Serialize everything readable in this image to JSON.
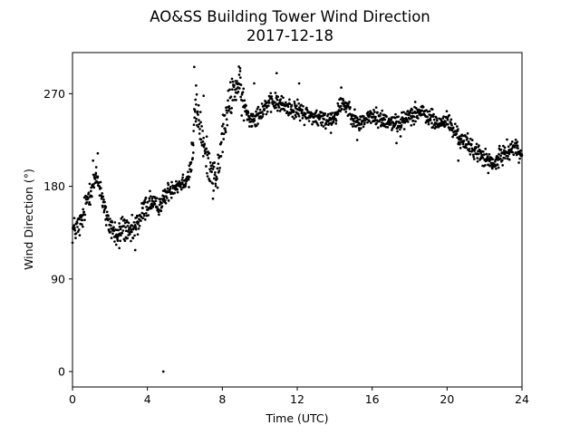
{
  "chart_data": {
    "type": "scatter",
    "title": "AO&SS Building Tower Wind Direction",
    "subtitle": "2017-12-18",
    "xlabel": "Time (UTC)",
    "ylabel": "Wind Direction (°)",
    "xlim": [
      0,
      24
    ],
    "ylim": [
      -15,
      310
    ],
    "xticks": [
      0,
      4,
      8,
      12,
      16,
      20,
      24
    ],
    "xtick_labels": [
      "0",
      "4",
      "8",
      "12",
      "16",
      "20",
      "24"
    ],
    "yticks": [
      0,
      90,
      180,
      270
    ],
    "ytick_labels": [
      "0",
      "90",
      "180",
      "270"
    ],
    "grid": false,
    "legend": "none",
    "marker_color": "#000000",
    "trend": [
      [
        0.0,
        137
      ],
      [
        0.25,
        140
      ],
      [
        0.5,
        145
      ],
      [
        0.7,
        162
      ],
      [
        0.9,
        175
      ],
      [
        1.1,
        182
      ],
      [
        1.3,
        188
      ],
      [
        1.5,
        178
      ],
      [
        1.7,
        160
      ],
      [
        1.85,
        145
      ],
      [
        2.1,
        140
      ],
      [
        2.4,
        130
      ],
      [
        2.7,
        142
      ],
      [
        3.0,
        132
      ],
      [
        3.3,
        138
      ],
      [
        3.6,
        148
      ],
      [
        3.9,
        160
      ],
      [
        4.2,
        165
      ],
      [
        4.5,
        160
      ],
      [
        4.8,
        165
      ],
      [
        5.1,
        175
      ],
      [
        5.4,
        180
      ],
      [
        5.7,
        182
      ],
      [
        6.0,
        186
      ],
      [
        6.2,
        190
      ],
      [
        6.4,
        210
      ],
      [
        6.55,
        255
      ],
      [
        6.7,
        248
      ],
      [
        6.9,
        230
      ],
      [
        7.1,
        210
      ],
      [
        7.4,
        200
      ],
      [
        7.6,
        188
      ],
      [
        7.8,
        195
      ],
      [
        8.0,
        230
      ],
      [
        8.2,
        245
      ],
      [
        8.4,
        262
      ],
      [
        8.6,
        275
      ],
      [
        8.9,
        278
      ],
      [
        9.2,
        255
      ],
      [
        9.5,
        245
      ],
      [
        9.9,
        250
      ],
      [
        10.3,
        258
      ],
      [
        10.8,
        262
      ],
      [
        11.3,
        258
      ],
      [
        11.8,
        255
      ],
      [
        12.5,
        250
      ],
      [
        13.0,
        247
      ],
      [
        13.5,
        244
      ],
      [
        14.0,
        248
      ],
      [
        14.4,
        262
      ],
      [
        14.8,
        255
      ],
      [
        15.2,
        240
      ],
      [
        15.6,
        245
      ],
      [
        16.0,
        248
      ],
      [
        16.5,
        245
      ],
      [
        17.0,
        243
      ],
      [
        17.5,
        240
      ],
      [
        18.0,
        250
      ],
      [
        18.5,
        252
      ],
      [
        19.0,
        248
      ],
      [
        19.5,
        240
      ],
      [
        20.0,
        245
      ],
      [
        20.3,
        235
      ],
      [
        20.8,
        225
      ],
      [
        21.3,
        218
      ],
      [
        21.8,
        210
      ],
      [
        22.2,
        205
      ],
      [
        22.5,
        200
      ],
      [
        22.8,
        208
      ],
      [
        23.2,
        215
      ],
      [
        23.6,
        218
      ],
      [
        24.0,
        210
      ]
    ],
    "outliers": [
      [
        4.85,
        0
      ],
      [
        6.5,
        296
      ],
      [
        6.6,
        278
      ],
      [
        7.0,
        268
      ],
      [
        1.35,
        212
      ],
      [
        8.95,
        292
      ],
      [
        10.9,
        290
      ],
      [
        12.1,
        280
      ],
      [
        6.45,
        220
      ],
      [
        7.5,
        168
      ],
      [
        3.35,
        118
      ],
      [
        2.5,
        120
      ],
      [
        1.1,
        205
      ],
      [
        9.7,
        280
      ],
      [
        14.35,
        276
      ],
      [
        13.8,
        232
      ],
      [
        15.2,
        225
      ],
      [
        17.3,
        222
      ],
      [
        18.3,
        262
      ],
      [
        20.6,
        205
      ],
      [
        22.2,
        193
      ],
      [
        23.7,
        222
      ]
    ],
    "samples_per_hour": 60
  }
}
